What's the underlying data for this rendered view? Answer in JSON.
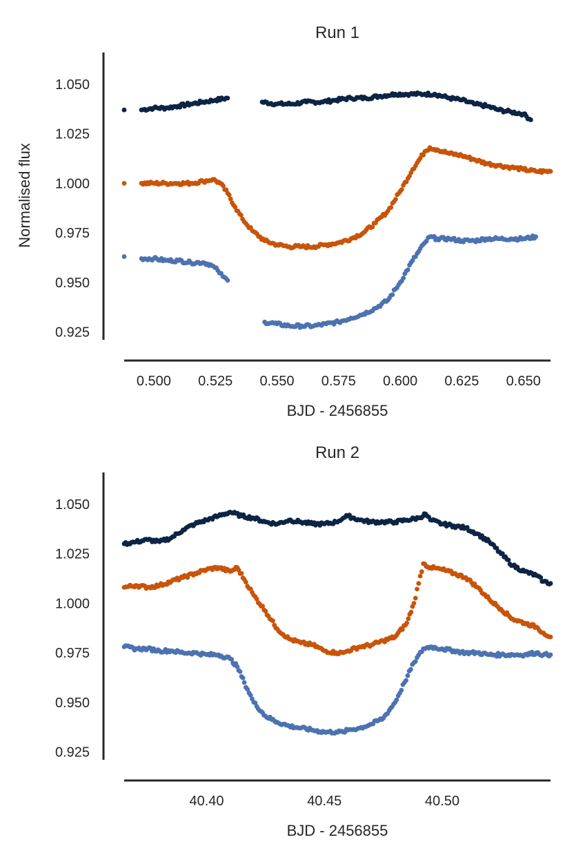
{
  "chart_data": [
    {
      "type": "scatter",
      "title": "Run 1",
      "xlabel": "BJD - 2456855",
      "ylabel": "Normalised flux",
      "xlim": [
        0.488,
        0.661
      ],
      "ylim": [
        0.921,
        1.066
      ],
      "xticks": [
        "0.500",
        "0.525",
        "0.550",
        "0.575",
        "0.600",
        "0.625",
        "0.650"
      ],
      "yticks": [
        "0.925",
        "0.950",
        "0.975",
        "1.000",
        "1.025",
        "1.050"
      ],
      "grid": false,
      "series": [
        {
          "color": "#0d2444",
          "points": [
            [
              0.488,
              1.037
            ],
            [
              0.495,
              1.037
            ],
            [
              0.5,
              1.038
            ],
            [
              0.505,
              1.038
            ],
            [
              0.51,
              1.039
            ],
            [
              0.515,
              1.04
            ],
            [
              0.52,
              1.041
            ],
            [
              0.525,
              1.042
            ],
            [
              0.53,
              1.043
            ],
            [
              0.544,
              1.041
            ],
            [
              0.55,
              1.04
            ],
            [
              0.556,
              1.04
            ],
            [
              0.562,
              1.041
            ],
            [
              0.568,
              1.041
            ],
            [
              0.574,
              1.042
            ],
            [
              0.58,
              1.043
            ],
            [
              0.586,
              1.043
            ],
            [
              0.592,
              1.044
            ],
            [
              0.598,
              1.045
            ],
            [
              0.604,
              1.045
            ],
            [
              0.61,
              1.045
            ],
            [
              0.614,
              1.045
            ],
            [
              0.62,
              1.043
            ],
            [
              0.625,
              1.042
            ],
            [
              0.63,
              1.04
            ],
            [
              0.635,
              1.039
            ],
            [
              0.64,
              1.037
            ],
            [
              0.645,
              1.036
            ],
            [
              0.65,
              1.035
            ],
            [
              0.653,
              1.032
            ]
          ]
        },
        {
          "color": "#c8540a",
          "points": [
            [
              0.488,
              1.0
            ],
            [
              0.495,
              1.0
            ],
            [
              0.5,
              1.0
            ],
            [
              0.505,
              1.0
            ],
            [
              0.51,
              1.0
            ],
            [
              0.515,
              1.0
            ],
            [
              0.52,
              1.001
            ],
            [
              0.524,
              1.002
            ],
            [
              0.527,
              1.0
            ],
            [
              0.53,
              0.995
            ],
            [
              0.533,
              0.988
            ],
            [
              0.536,
              0.982
            ],
            [
              0.54,
              0.976
            ],
            [
              0.545,
              0.971
            ],
            [
              0.55,
              0.969
            ],
            [
              0.555,
              0.968
            ],
            [
              0.56,
              0.968
            ],
            [
              0.565,
              0.968
            ],
            [
              0.57,
              0.969
            ],
            [
              0.575,
              0.97
            ],
            [
              0.58,
              0.972
            ],
            [
              0.585,
              0.975
            ],
            [
              0.59,
              0.98
            ],
            [
              0.595,
              0.986
            ],
            [
              0.6,
              0.996
            ],
            [
              0.605,
              1.007
            ],
            [
              0.61,
              1.016
            ],
            [
              0.612,
              1.018
            ],
            [
              0.615,
              1.017
            ],
            [
              0.62,
              1.015
            ],
            [
              0.625,
              1.014
            ],
            [
              0.63,
              1.012
            ],
            [
              0.635,
              1.01
            ],
            [
              0.64,
              1.009
            ],
            [
              0.645,
              1.008
            ],
            [
              0.65,
              1.007
            ],
            [
              0.655,
              1.006
            ],
            [
              0.661,
              1.006
            ]
          ]
        },
        {
          "color": "#4c72b0",
          "points": [
            [
              0.488,
              0.963
            ],
            [
              0.495,
              0.962
            ],
            [
              0.5,
              0.962
            ],
            [
              0.505,
              0.961
            ],
            [
              0.51,
              0.961
            ],
            [
              0.515,
              0.96
            ],
            [
              0.52,
              0.96
            ],
            [
              0.523,
              0.959
            ],
            [
              0.526,
              0.956
            ],
            [
              0.528,
              0.953
            ],
            [
              0.53,
              0.951
            ],
            [
              0.545,
              0.93
            ],
            [
              0.55,
              0.929
            ],
            [
              0.555,
              0.928
            ],
            [
              0.56,
              0.928
            ],
            [
              0.565,
              0.928
            ],
            [
              0.57,
              0.929
            ],
            [
              0.575,
              0.93
            ],
            [
              0.58,
              0.932
            ],
            [
              0.585,
              0.934
            ],
            [
              0.59,
              0.937
            ],
            [
              0.595,
              0.941
            ],
            [
              0.6,
              0.95
            ],
            [
              0.605,
              0.961
            ],
            [
              0.61,
              0.97
            ],
            [
              0.612,
              0.973
            ],
            [
              0.615,
              0.972
            ],
            [
              0.62,
              0.972
            ],
            [
              0.625,
              0.971
            ],
            [
              0.63,
              0.971
            ],
            [
              0.635,
              0.972
            ],
            [
              0.64,
              0.972
            ],
            [
              0.645,
              0.972
            ],
            [
              0.65,
              0.972
            ],
            [
              0.655,
              0.973
            ]
          ]
        }
      ]
    },
    {
      "type": "scatter",
      "title": "Run 2",
      "xlabel": "BJD - 2456855",
      "ylabel": "",
      "xlim": [
        40.365,
        40.546
      ],
      "ylim": [
        0.921,
        1.066
      ],
      "xticks": [
        "40.40",
        "40.45",
        "40.50"
      ],
      "yticks": [
        "0.925",
        "0.950",
        "0.975",
        "1.000",
        "1.025",
        "1.050"
      ],
      "grid": false,
      "series": [
        {
          "color": "#0d2444",
          "points": [
            [
              40.365,
              1.03
            ],
            [
              40.37,
              1.031
            ],
            [
              40.375,
              1.032
            ],
            [
              40.38,
              1.031
            ],
            [
              40.385,
              1.033
            ],
            [
              40.39,
              1.037
            ],
            [
              40.395,
              1.04
            ],
            [
              40.4,
              1.042
            ],
            [
              40.405,
              1.044
            ],
            [
              40.41,
              1.046
            ],
            [
              40.415,
              1.044
            ],
            [
              40.42,
              1.043
            ],
            [
              40.425,
              1.041
            ],
            [
              40.43,
              1.04
            ],
            [
              40.435,
              1.042
            ],
            [
              40.44,
              1.041
            ],
            [
              40.445,
              1.04
            ],
            [
              40.45,
              1.04
            ],
            [
              40.455,
              1.041
            ],
            [
              40.458,
              1.043
            ],
            [
              40.46,
              1.044
            ],
            [
              40.465,
              1.042
            ],
            [
              40.47,
              1.041
            ],
            [
              40.475,
              1.041
            ],
            [
              40.48,
              1.041
            ],
            [
              40.485,
              1.042
            ],
            [
              40.49,
              1.043
            ],
            [
              40.493,
              1.045
            ],
            [
              40.495,
              1.042
            ],
            [
              40.5,
              1.04
            ],
            [
              40.505,
              1.039
            ],
            [
              40.51,
              1.038
            ],
            [
              40.515,
              1.035
            ],
            [
              40.52,
              1.031
            ],
            [
              40.525,
              1.025
            ],
            [
              40.53,
              1.019
            ],
            [
              40.535,
              1.016
            ],
            [
              40.54,
              1.014
            ],
            [
              40.543,
              1.011
            ],
            [
              40.546,
              1.01
            ]
          ]
        },
        {
          "color": "#c8540a",
          "points": [
            [
              40.365,
              1.008
            ],
            [
              40.37,
              1.009
            ],
            [
              40.375,
              1.008
            ],
            [
              40.38,
              1.009
            ],
            [
              40.385,
              1.011
            ],
            [
              40.39,
              1.013
            ],
            [
              40.395,
              1.015
            ],
            [
              40.4,
              1.017
            ],
            [
              40.405,
              1.018
            ],
            [
              40.41,
              1.016
            ],
            [
              40.413,
              1.018
            ],
            [
              40.416,
              1.012
            ],
            [
              40.42,
              1.004
            ],
            [
              40.425,
              0.996
            ],
            [
              40.43,
              0.987
            ],
            [
              40.435,
              0.982
            ],
            [
              40.44,
              0.98
            ],
            [
              40.445,
              0.979
            ],
            [
              40.45,
              0.976
            ],
            [
              40.455,
              0.975
            ],
            [
              40.458,
              0.975
            ],
            [
              40.46,
              0.976
            ],
            [
              40.465,
              0.978
            ],
            [
              40.47,
              0.979
            ],
            [
              40.475,
              0.981
            ],
            [
              40.48,
              0.983
            ],
            [
              40.485,
              0.99
            ],
            [
              40.488,
              1.0
            ],
            [
              40.49,
              1.01
            ],
            [
              40.492,
              1.02
            ],
            [
              40.495,
              1.018
            ],
            [
              40.5,
              1.017
            ],
            [
              40.505,
              1.015
            ],
            [
              40.51,
              1.013
            ],
            [
              40.515,
              1.008
            ],
            [
              40.52,
              1.002
            ],
            [
              40.525,
              0.997
            ],
            [
              40.53,
              0.992
            ],
            [
              40.535,
              0.99
            ],
            [
              40.54,
              0.988
            ],
            [
              40.543,
              0.985
            ],
            [
              40.546,
              0.983
            ]
          ]
        },
        {
          "color": "#4c72b0",
          "points": [
            [
              40.365,
              0.978
            ],
            [
              40.37,
              0.977
            ],
            [
              40.375,
              0.977
            ],
            [
              40.38,
              0.976
            ],
            [
              40.385,
              0.976
            ],
            [
              40.39,
              0.975
            ],
            [
              40.395,
              0.975
            ],
            [
              40.4,
              0.974
            ],
            [
              40.405,
              0.974
            ],
            [
              40.41,
              0.972
            ],
            [
              40.413,
              0.968
            ],
            [
              40.416,
              0.96
            ],
            [
              40.42,
              0.95
            ],
            [
              40.425,
              0.943
            ],
            [
              40.43,
              0.94
            ],
            [
              40.435,
              0.938
            ],
            [
              40.44,
              0.937
            ],
            [
              40.445,
              0.936
            ],
            [
              40.45,
              0.935
            ],
            [
              40.455,
              0.935
            ],
            [
              40.458,
              0.935
            ],
            [
              40.46,
              0.936
            ],
            [
              40.465,
              0.937
            ],
            [
              40.47,
              0.939
            ],
            [
              40.475,
              0.942
            ],
            [
              40.48,
              0.95
            ],
            [
              40.484,
              0.96
            ],
            [
              40.488,
              0.97
            ],
            [
              40.492,
              0.977
            ],
            [
              40.495,
              0.978
            ],
            [
              40.5,
              0.977
            ],
            [
              40.505,
              0.976
            ],
            [
              40.51,
              0.975
            ],
            [
              40.515,
              0.975
            ],
            [
              40.52,
              0.974
            ],
            [
              40.525,
              0.974
            ],
            [
              40.53,
              0.974
            ],
            [
              40.535,
              0.974
            ],
            [
              40.54,
              0.975
            ],
            [
              40.543,
              0.974
            ],
            [
              40.546,
              0.974
            ]
          ]
        }
      ]
    }
  ]
}
